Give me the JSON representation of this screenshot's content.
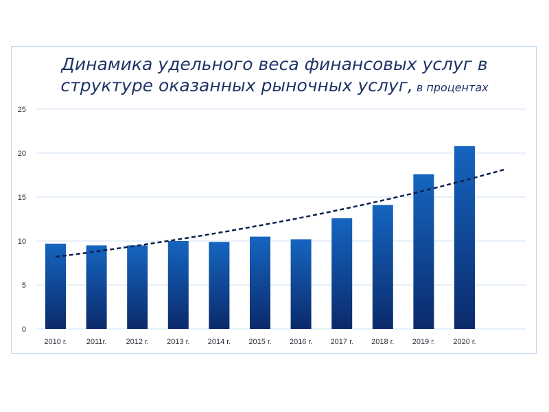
{
  "chart_data": {
    "type": "bar",
    "title_line1": "Динамика удельного веса финансовых услуг в",
    "title_line2": "структуре оказанных рыночных услуг,",
    "title_suffix": "в процентах",
    "xlabel": "",
    "ylabel": "",
    "categories": [
      "2010 г.",
      "2011г.",
      "2012 г.",
      "2013 г.",
      "2014 г.",
      "2015 г.",
      "2016 г.",
      "2017 г.",
      "2018 г.",
      "2019 г.",
      "2020 г."
    ],
    "values": [
      9.7,
      9.5,
      9.5,
      10.0,
      9.9,
      10.5,
      10.2,
      12.6,
      14.1,
      17.6,
      20.8
    ],
    "yticks": [
      "0",
      "5",
      "10",
      "15",
      "20",
      "25"
    ],
    "ylim": [
      0,
      25
    ],
    "grid": true,
    "legend": "none",
    "trendline": {
      "type": "exponential",
      "start": 8.2,
      "end": 18.2,
      "style": "dashed"
    },
    "colors": {
      "bar_top": "#1565c0",
      "bar_bottom": "#0b2a6b",
      "trend": "#0d1f4d",
      "grid": "#cfe0f4",
      "title": "#1f3466",
      "axis_text": "#2a2f3a"
    }
  }
}
